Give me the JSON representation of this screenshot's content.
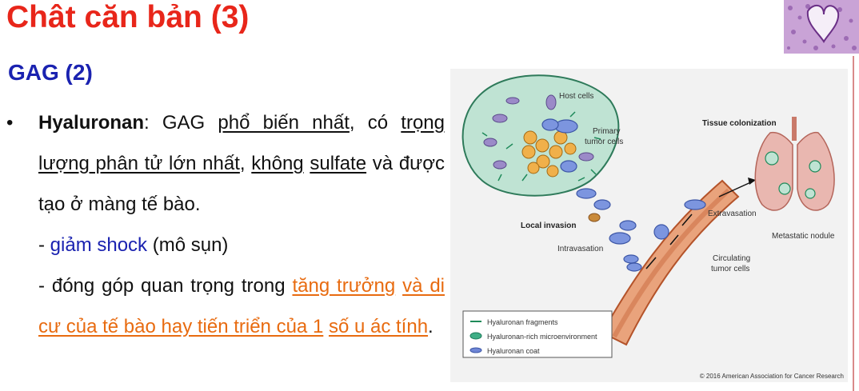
{
  "slide": {
    "title": "Chât căn bản (3)",
    "subtitle": "GAG (2)"
  },
  "bullet": {
    "term": "Hyaluronan",
    "colon_gag": ": GAG ",
    "most_common": "phổ biến nhất",
    "comma_co": ", có",
    "largest_weight": "trọng lượng phân tử lớn nhất",
    "comma": ",",
    "khong": "không",
    "sulfate": "sulfate",
    "rest": " và được tạo ở màng tế bào."
  },
  "sub1": {
    "dash": "- ",
    "highlight": "giảm shock",
    "rest": " (mô sụn)"
  },
  "sub2": {
    "prefix": "- đóng góp quan trọng trong ",
    "line1_highlight": "tăng trưởng",
    "line2_highlight": "và di cư của tế bào hay tiến triển của 1",
    "line3_highlight": "số u ác tính",
    "end": "."
  },
  "figure": {
    "labels": {
      "host_cells": "Host cells",
      "primary_1": "Primary",
      "primary_2": "tumor cells",
      "tissue_colonization": "Tissue colonization",
      "local_invasion": "Local invasion",
      "extravasation": "Extravasation",
      "metastatic_nodule": "Metastatic nodule",
      "intravasation": "Intravasation",
      "circulating_1": "Circulating",
      "circulating_2": "tumor cells"
    },
    "legend": [
      {
        "label": "Hyaluronan fragments",
        "color": "#1f8a5a"
      },
      {
        "label": "Hyaluronan-rich microenvironment",
        "color": "#3fae86"
      },
      {
        "label": "Hyaluronan coat",
        "color": "#6f86d6"
      }
    ],
    "copyright": "© 2016 American Association for Cancer Research"
  },
  "colors": {
    "title": "#e8261a",
    "subtitle": "#1a22b0",
    "highlight_blue": "#1a22b0",
    "highlight_orange": "#e86b10"
  }
}
